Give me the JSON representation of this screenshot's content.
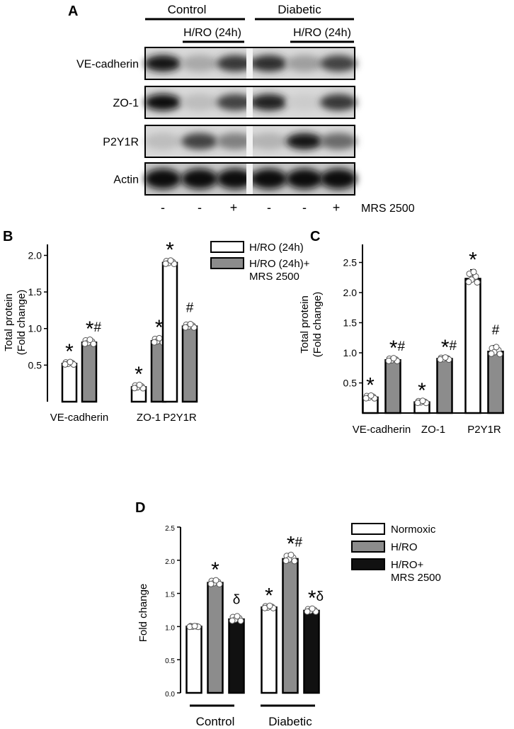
{
  "panelA": {
    "panel_label": "A",
    "groups": [
      {
        "label": "Control",
        "sublabel": "H/RO (24h)"
      },
      {
        "label": "Diabetic",
        "sublabel": "H/RO (24h)"
      }
    ],
    "bands": [
      {
        "label": "VE-cadherin",
        "intensity": [
          0.95,
          0.25,
          0.8,
          0.85,
          0.3,
          0.75
        ]
      },
      {
        "label": "ZO-1",
        "intensity": [
          1.0,
          0.15,
          0.75,
          0.9,
          0.08,
          0.8
        ]
      },
      {
        "label": "P2Y1R",
        "intensity": [
          0.15,
          0.75,
          0.45,
          0.2,
          0.95,
          0.55
        ]
      },
      {
        "label": "Actin",
        "intensity": [
          1.0,
          1.0,
          1.0,
          1.0,
          1.0,
          1.0
        ]
      }
    ],
    "treatment_signs": [
      "-",
      "-",
      "+",
      "-",
      "-",
      "+"
    ],
    "treatment_label": "MRS 2500"
  },
  "chart_data": [
    {
      "type": "bar",
      "panel_label": "B",
      "ylabel_line1": "Total protein",
      "ylabel_line2": "(Fold change)",
      "ylim": [
        0,
        2.15
      ],
      "yticks": [
        "0.5",
        "1.0",
        "1.5",
        "2.0"
      ],
      "categories": [
        "VE-cadherin",
        "ZO-1",
        "P2Y1R"
      ],
      "legend": [
        "H/RO (24h)",
        "H/RO (24h)+",
        "MRS 2500"
      ],
      "series": [
        {
          "name": "H/RO (24h)",
          "values": [
            0.52,
            0.2,
            1.9
          ],
          "errors": [
            0.03,
            0.04,
            0.04
          ],
          "color": "#ffffff",
          "marks": [
            "*",
            "*",
            "*"
          ]
        },
        {
          "name": "H/RO (24h)+ MRS 2500",
          "values": [
            0.81,
            0.83,
            1.03
          ],
          "errors": [
            0.05,
            0.05,
            0.04
          ],
          "color": "#8c8c8c",
          "marks": [
            "*#",
            "*#",
            "#"
          ]
        }
      ]
    },
    {
      "type": "bar",
      "panel_label": "C",
      "ylabel_line1": "Total protein",
      "ylabel_line2": "(Fold change)",
      "ylim": [
        0,
        2.8
      ],
      "yticks": [
        "0.5",
        "1.0",
        "1.5",
        "2.0",
        "2.5"
      ],
      "categories": [
        "VE-cadherin",
        "ZO-1",
        "P2Y1R"
      ],
      "series": [
        {
          "name": "H/RO (24h)",
          "values": [
            0.26,
            0.18,
            2.23
          ],
          "errors": [
            0.04,
            0.03,
            0.15
          ],
          "color": "#ffffff",
          "marks": [
            "*",
            "*",
            "*"
          ]
        },
        {
          "name": "H/RO (24h)+ MRS 2500",
          "values": [
            0.88,
            0.9,
            1.02
          ],
          "errors": [
            0.04,
            0.03,
            0.1
          ],
          "color": "#8c8c8c",
          "marks": [
            "*#",
            "*#",
            "#"
          ]
        }
      ]
    },
    {
      "type": "bar",
      "panel_label": "D",
      "ylabel": "Fold change",
      "ylim": [
        0,
        2.5
      ],
      "yticks": [
        "0.0",
        "0.5",
        "1.0",
        "1.5",
        "2.0",
        "2.5"
      ],
      "categories": [
        "Control",
        "Diabetic"
      ],
      "legend": [
        "Normoxic",
        "H/RO",
        "H/RO+",
        "MRS 2500"
      ],
      "series": [
        {
          "name": "Normoxic",
          "values": [
            1.0,
            1.29
          ],
          "errors": [
            0.01,
            0.03
          ],
          "color": "#ffffff",
          "marks": [
            "",
            "*"
          ]
        },
        {
          "name": "H/RO",
          "values": [
            1.66,
            2.02
          ],
          "errors": [
            0.05,
            0.08
          ],
          "color": "#8c8c8c",
          "marks": [
            "*",
            "*#"
          ]
        },
        {
          "name": "H/RO+ MRS 2500",
          "values": [
            1.11,
            1.24
          ],
          "errors": [
            0.06,
            0.04
          ],
          "color": "#111111",
          "marks": [
            "δ",
            "*δ"
          ]
        }
      ]
    }
  ]
}
